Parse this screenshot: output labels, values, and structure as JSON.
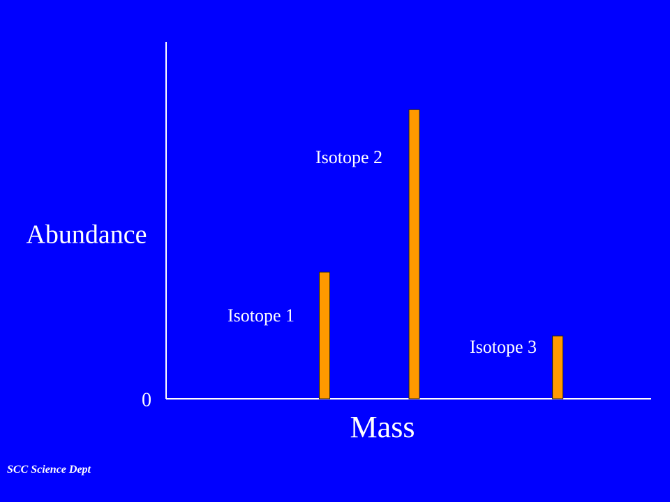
{
  "chart_data": {
    "type": "bar",
    "title": "",
    "xlabel": "Mass",
    "ylabel": "Abundance",
    "y_tick_labels": [
      "0"
    ],
    "ylim": [
      0,
      100
    ],
    "grid": false,
    "legend": "none",
    "categories": [
      "Isotope 1",
      "Isotope 2",
      "Isotope 3"
    ],
    "x": [
      1,
      2,
      3.6
    ],
    "values": [
      35.5,
      81,
      17.6
    ],
    "bar_color": "#ff9900",
    "axis_color": "#ffffff",
    "background_color": "#0000ff"
  },
  "footer": {
    "text": "SCC Science Dept"
  }
}
